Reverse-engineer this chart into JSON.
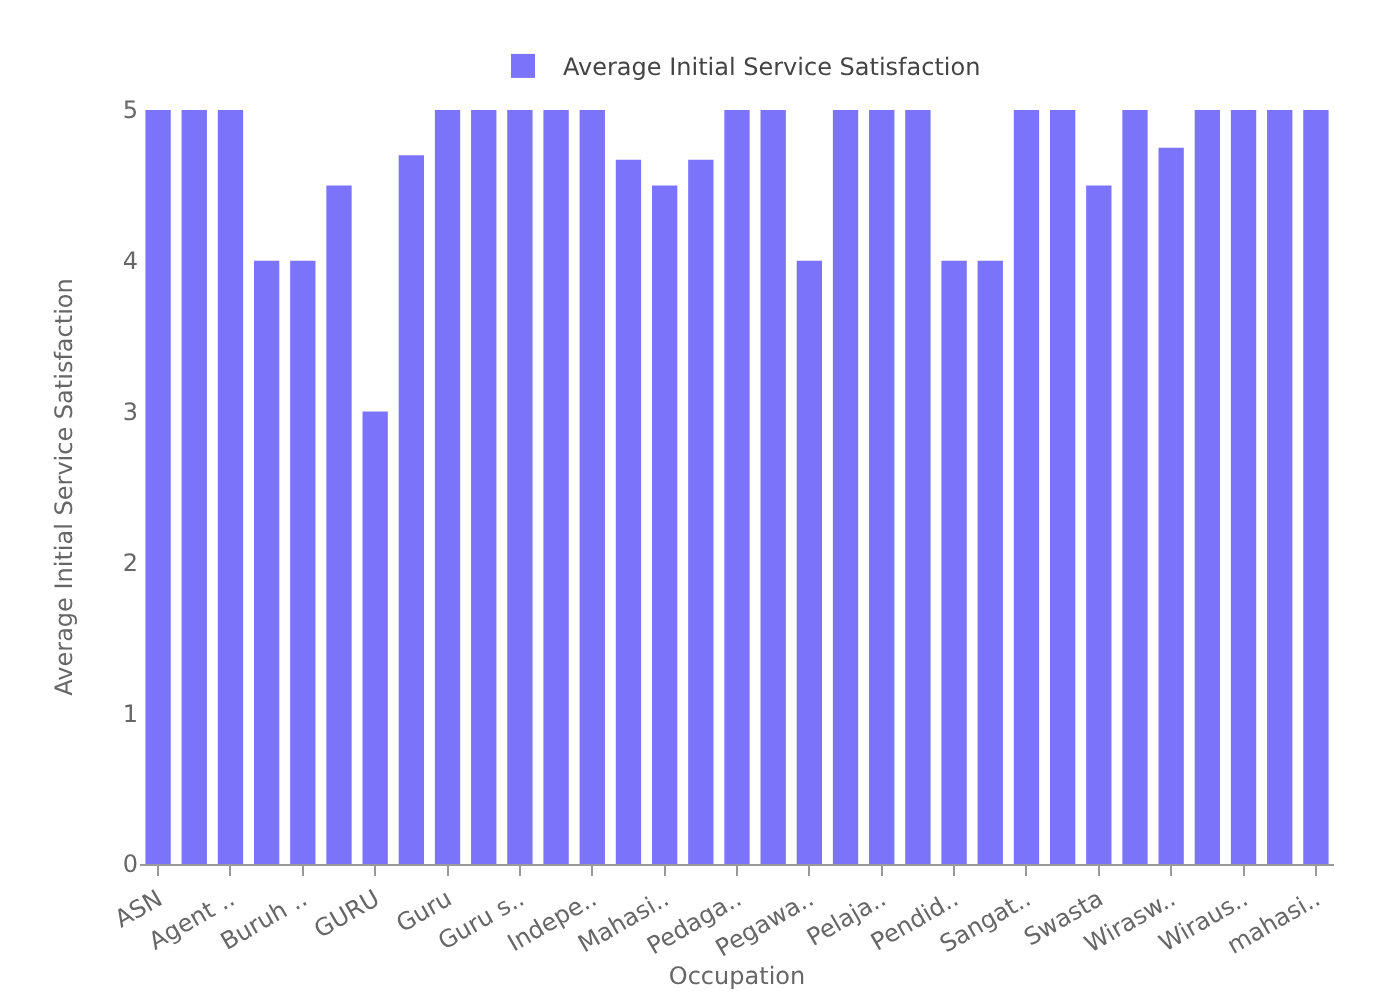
{
  "chart_data": {
    "type": "bar",
    "xlabel": "Occupation",
    "ylabel": "Average Initial Service Satisfaction",
    "categories": [
      "ASN",
      null,
      "Agent ..",
      null,
      "Buruh ..",
      null,
      "GURU",
      null,
      "Guru",
      null,
      "Guru s..",
      null,
      "Indepe..",
      null,
      "Mahasi..",
      null,
      "Pedaga..",
      null,
      "Pegawa..",
      null,
      "Pelaja..",
      null,
      "Pendid..",
      null,
      "Sangat..",
      null,
      "Swasta",
      null,
      "Wirasw..",
      null,
      "Wiraus..",
      null,
      "mahasi.."
    ],
    "series": [
      {
        "name": "Average Initial Service Satisfaction",
        "color": "#7b74fb",
        "values": [
          5,
          5,
          5,
          4,
          4,
          4.5,
          3,
          4.7,
          5,
          5,
          5,
          5,
          5,
          4.67,
          4.5,
          4.67,
          5,
          5,
          4,
          5,
          5,
          5,
          4,
          4,
          5,
          5,
          4.5,
          5,
          4.75,
          5,
          5,
          5,
          5
        ]
      }
    ],
    "ylim": [
      0,
      5
    ],
    "yticks": [
      0,
      1,
      2,
      3,
      4,
      5
    ],
    "grid": false,
    "legend": "top"
  }
}
